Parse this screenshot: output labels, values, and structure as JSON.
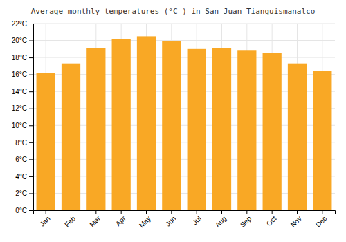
{
  "chart_data": {
    "type": "bar",
    "title": "Average monthly temperatures (°C ) in San Juan Tianguismanalco",
    "categories": [
      "Jan",
      "Feb",
      "Mar",
      "Apr",
      "May",
      "Jun",
      "Jul",
      "Aug",
      "Sep",
      "Oct",
      "Nov",
      "Dec"
    ],
    "values": [
      16.2,
      17.3,
      19.1,
      20.2,
      20.5,
      19.9,
      19.0,
      19.1,
      18.8,
      18.5,
      17.3,
      16.4
    ],
    "color": "#F9A825",
    "ylim": [
      0,
      22
    ],
    "yticks": [
      {
        "value": 0,
        "label": "0°C"
      },
      {
        "value": 2,
        "label": "2°C"
      },
      {
        "value": 4,
        "label": "4°C"
      },
      {
        "value": 6,
        "label": "6°C"
      },
      {
        "value": 8,
        "label": "8°C"
      },
      {
        "value": 10,
        "label": "10°C"
      },
      {
        "value": 12,
        "label": "12°C"
      },
      {
        "value": 14,
        "label": "14°C"
      },
      {
        "value": 16,
        "label": "16°C"
      },
      {
        "value": 18,
        "label": "18°C"
      },
      {
        "value": 20,
        "label": "20°C"
      },
      {
        "value": 22,
        "label": "22°C"
      }
    ],
    "grid": true
  }
}
